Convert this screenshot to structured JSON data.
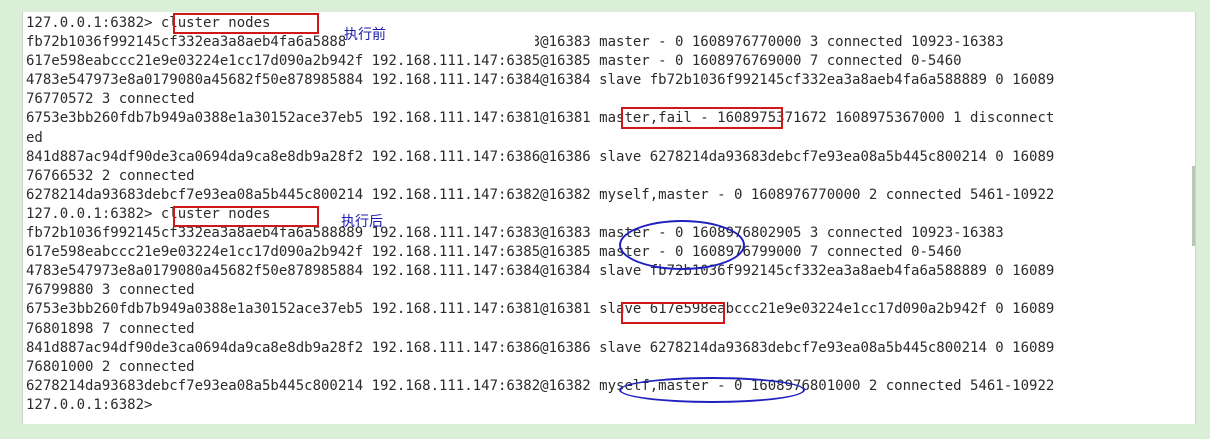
{
  "terminal": {
    "lines": [
      "127.0.0.1:6382> cluster nodes",
      "fb72b1036f992145cf332ea3a8aeb4fa6a588889 192.168.111.147:6383@16383 master - 0 1608976770000 3 connected 10923-16383",
      "617e598eabccc21e9e03224e1cc17d090a2b942f 192.168.111.147:6385@16385 master - 0 1608976769000 7 connected 0-5460",
      "4783e547973e8a0179080a45682f50e878985884 192.168.111.147:6384@16384 slave fb72b1036f992145cf332ea3a8aeb4fa6a588889 0 16089",
      "76770572 3 connected",
      "6753e3bb260fdb7b949a0388e1a30152ace37eb5 192.168.111.147:6381@16381 master,fail - 1608975371672 1608975367000 1 disconnect",
      "ed",
      "841d887ac94df90de3ca0694da9ca8e8db9a28f2 192.168.111.147:6386@16386 slave 6278214da93683debcf7e93ea08a5b445c800214 0 16089",
      "76766532 2 connected",
      "6278214da93683debcf7e93ea08a5b445c800214 192.168.111.147:6382@16382 myself,master - 0 1608976770000 2 connected 5461-10922",
      "127.0.0.1:6382> cluster nodes",
      "fb72b1036f992145cf332ea3a8aeb4fa6a588889 192.168.111.147:6383@16383 master - 0 1608976802905 3 connected 10923-16383",
      "617e598eabccc21e9e03224e1cc17d090a2b942f 192.168.111.147:6385@16385 master - 0 1608976799000 7 connected 0-5460",
      "4783e547973e8a0179080a45682f50e878985884 192.168.111.147:6384@16384 slave fb72b1036f992145cf332ea3a8aeb4fa6a588889 0 16089",
      "76799880 3 connected",
      "6753e3bb260fdb7b949a0388e1a30152ace37eb5 192.168.111.147:6381@16381 slave 617e598eabccc21e9e03224e1cc17d090a2b942f 0 16089",
      "76801898 7 connected",
      "841d887ac94df90de3ca0694da9ca8e8db9a28f2 192.168.111.147:6386@16386 slave 6278214da93683debcf7e93ea08a5b445c800214 0 16089",
      "76801000 2 connected",
      "6278214da93683debcf7e93ea08a5b445c800214 192.168.111.147:6382@16382 myself,master - 0 1608976801000 2 connected 5461-10922",
      "127.0.0.1:6382>"
    ]
  },
  "annotations": {
    "before_label": "执行前",
    "after_label": "执行后"
  },
  "colors": {
    "background": "#dbeed8",
    "box_red": "#d01818",
    "circle_blue": "#2020c0",
    "note_blue": "#1b1bb0"
  }
}
